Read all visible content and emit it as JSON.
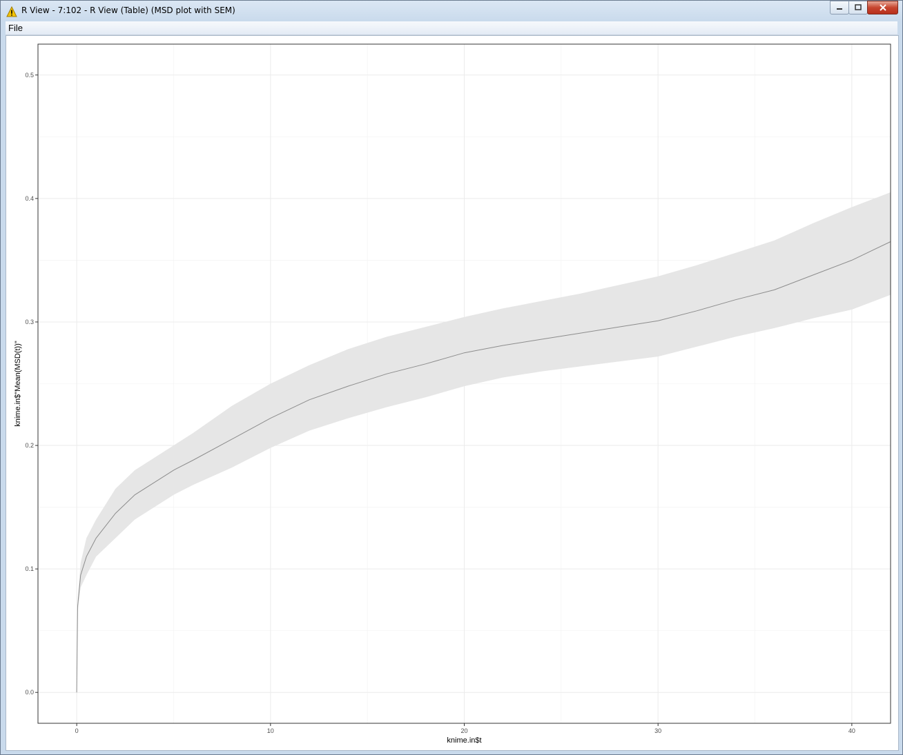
{
  "window": {
    "title": "R View - 7:102 - R View (Table) (MSD plot with SEM)",
    "icon": "warning-icon",
    "controls": [
      "minimize-icon",
      "maximize-icon",
      "close-icon"
    ]
  },
  "menubar": {
    "items": [
      {
        "label": "File"
      }
    ]
  },
  "chart_data": {
    "type": "line",
    "title": "",
    "xlabel": "knime.in$t",
    "ylabel": "knime.in$\"Mean(MSD(t))\"",
    "xlim": [
      -2,
      42
    ],
    "ylim": [
      -0.025,
      0.525
    ],
    "x_ticks": [
      0,
      10,
      20,
      30,
      40
    ],
    "x_tick_labels": [
      "0",
      "10",
      "20",
      "30",
      "40"
    ],
    "y_ticks": [
      0.0,
      0.1,
      0.2,
      0.3,
      0.4,
      0.5
    ],
    "y_tick_labels": [
      "0.0",
      "0.1",
      "0.2",
      "0.3",
      "0.4",
      "0.5"
    ],
    "grid": true,
    "colors": {
      "line": "#8c8c8c",
      "ribbon": "#e6e6e6",
      "grid": "#ebebeb",
      "panel_border": "#333333"
    },
    "series": [
      {
        "x": [
          0,
          0.05,
          0.2,
          0.5,
          1,
          2,
          3,
          4,
          5,
          6,
          8,
          10,
          12,
          14,
          16,
          18,
          20,
          22,
          24,
          26,
          28,
          30,
          32,
          34,
          36,
          38,
          40,
          42
        ],
        "mean": [
          0,
          0.07,
          0.095,
          0.11,
          0.125,
          0.145,
          0.16,
          0.17,
          0.18,
          0.188,
          0.205,
          0.222,
          0.237,
          0.248,
          0.258,
          0.266,
          0.275,
          0.281,
          0.286,
          0.291,
          0.296,
          0.301,
          0.309,
          0.318,
          0.326,
          0.338,
          0.35,
          0.365
        ],
        "upper": [
          0,
          0.075,
          0.105,
          0.125,
          0.14,
          0.165,
          0.18,
          0.19,
          0.2,
          0.21,
          0.232,
          0.25,
          0.265,
          0.278,
          0.288,
          0.296,
          0.304,
          0.311,
          0.317,
          0.323,
          0.33,
          0.337,
          0.346,
          0.356,
          0.366,
          0.38,
          0.393,
          0.405
        ],
        "lower": [
          0,
          0.065,
          0.085,
          0.095,
          0.11,
          0.125,
          0.14,
          0.15,
          0.16,
          0.168,
          0.182,
          0.198,
          0.212,
          0.222,
          0.231,
          0.239,
          0.248,
          0.255,
          0.26,
          0.264,
          0.268,
          0.272,
          0.28,
          0.288,
          0.295,
          0.303,
          0.31,
          0.322
        ]
      }
    ]
  }
}
